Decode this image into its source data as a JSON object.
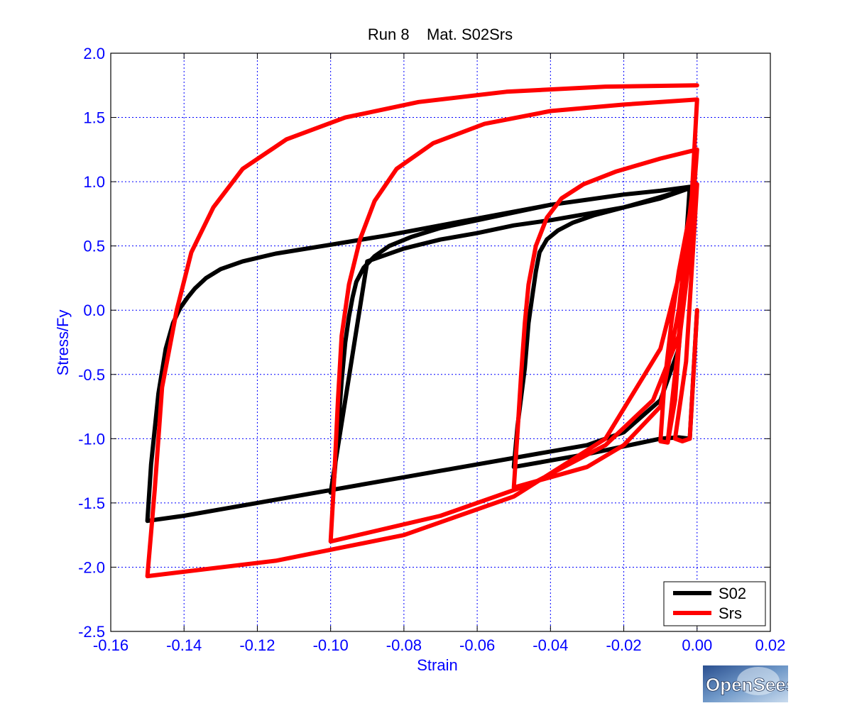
{
  "chart_data": {
    "type": "line",
    "title": "Run 8    Mat. S02Srs",
    "xlabel": "Strain",
    "ylabel": "Stress/Fy",
    "xlim": [
      -0.16,
      0.02
    ],
    "ylim": [
      -2.5,
      2.0
    ],
    "xticks": [
      -0.16,
      -0.14,
      -0.12,
      -0.1,
      -0.08,
      -0.06,
      -0.04,
      -0.02,
      0.0,
      0.02
    ],
    "xtick_labels": [
      "-0.16",
      "-0.14",
      "-0.12",
      "-0.10",
      "-0.08",
      "-0.06",
      "-0.04",
      "-0.02",
      "0.00",
      "0.02"
    ],
    "yticks": [
      2.0,
      1.5,
      1.0,
      0.5,
      0.0,
      -0.5,
      -1.0,
      -1.5,
      -2.0,
      -2.5
    ],
    "ytick_labels": [
      "2.0",
      "1.5",
      "1.0",
      "0.5",
      "0.0",
      "-0.5",
      "-1.0",
      "-1.5",
      "-2.0",
      "-2.5"
    ],
    "grid": true,
    "legend_position": "bottom-right",
    "series": [
      {
        "name": "S02",
        "color": "#000000",
        "x": [
          0,
          -0.002,
          -0.005,
          -0.01,
          -0.02,
          -0.03,
          -0.04,
          -0.05,
          -0.049,
          -0.047,
          -0.046,
          -0.045,
          -0.044,
          -0.043,
          -0.041,
          -0.038,
          -0.034,
          -0.028,
          -0.02,
          -0.01,
          -0.002,
          -0.01,
          -0.02,
          -0.03,
          -0.04,
          -0.05,
          -0.06,
          -0.07,
          -0.08,
          -0.09,
          -0.1,
          -0.099,
          -0.098,
          -0.097,
          -0.096,
          -0.095,
          -0.094,
          -0.093,
          -0.091,
          -0.088,
          -0.084,
          -0.078,
          -0.07,
          -0.06,
          -0.05,
          -0.04,
          -0.03,
          -0.02,
          -0.01,
          -0.002,
          -0.005,
          -0.01,
          -0.02,
          -0.03,
          -0.04,
          -0.05,
          -0.06,
          -0.07,
          -0.08,
          -0.09,
          -0.1,
          -0.11,
          -0.12,
          -0.13,
          -0.14,
          -0.15,
          -0.149,
          -0.147,
          -0.145,
          -0.143,
          -0.141,
          -0.139,
          -0.137,
          -0.134,
          -0.13,
          -0.124,
          -0.115,
          -0.1,
          -0.085,
          -0.07,
          -0.055,
          -0.04,
          -0.03,
          -0.02,
          -0.01,
          -0.002
        ],
        "y": [
          0,
          -1.0,
          -0.99,
          -1.0,
          -1.06,
          -1.12,
          -1.17,
          -1.22,
          -0.9,
          -0.45,
          -0.1,
          0.1,
          0.3,
          0.45,
          0.55,
          0.62,
          0.68,
          0.74,
          0.8,
          0.88,
          0.95,
          0.87,
          0.8,
          0.75,
          0.7,
          0.66,
          0.6,
          0.55,
          0.48,
          0.38,
          -1.42,
          -1.3,
          -0.95,
          -0.55,
          -0.25,
          -0.05,
          0.1,
          0.22,
          0.33,
          0.42,
          0.5,
          0.57,
          0.64,
          0.7,
          0.76,
          0.82,
          0.86,
          0.9,
          0.93,
          0.96,
          -0.3,
          -0.7,
          -0.95,
          -1.05,
          -1.1,
          -1.15,
          -1.2,
          -1.25,
          -1.3,
          -1.35,
          -1.4,
          -1.45,
          -1.5,
          -1.55,
          -1.6,
          -1.64,
          -1.2,
          -0.65,
          -0.3,
          -0.1,
          0.02,
          0.1,
          0.17,
          0.25,
          0.32,
          0.38,
          0.44,
          0.51,
          0.58,
          0.66,
          0.74,
          0.82,
          0.86,
          0.9,
          0.93,
          0.96
        ]
      },
      {
        "name": "Srs",
        "color": "#ff0000",
        "x": [
          0,
          -0.002,
          -0.004,
          -0.006,
          -0.003,
          0,
          -0.003,
          -0.006,
          -0.008,
          -0.006,
          -0.003,
          0,
          -0.004,
          -0.006,
          -0.008,
          -0.01,
          -0.009,
          -0.007,
          -0.005,
          -0.002,
          0,
          -0.005,
          -0.01,
          -0.02,
          -0.03,
          -0.04,
          -0.05,
          -0.049,
          -0.048,
          -0.047,
          -0.046,
          -0.044,
          -0.041,
          -0.037,
          -0.031,
          -0.022,
          -0.01,
          0,
          -0.002,
          -0.005,
          -0.012,
          -0.025,
          -0.045,
          -0.07,
          -0.1,
          -0.099,
          -0.098,
          -0.097,
          -0.095,
          -0.092,
          -0.088,
          -0.082,
          -0.072,
          -0.058,
          -0.04,
          -0.02,
          0,
          -0.002,
          -0.01,
          -0.025,
          -0.05,
          -0.08,
          -0.115,
          -0.15,
          -0.148,
          -0.146,
          -0.142,
          -0.138,
          -0.132,
          -0.124,
          -0.112,
          -0.096,
          -0.076,
          -0.052,
          -0.025,
          0
        ],
        "y": [
          0,
          -1.0,
          -1.02,
          -1.0,
          -0.4,
          0.98,
          0.2,
          -0.5,
          -1.02,
          -0.6,
          0.3,
          1.25,
          0.1,
          -0.7,
          -1.03,
          -1.02,
          -0.6,
          -0.1,
          0.3,
          0.75,
          1.25,
          0.0,
          -0.75,
          -1.05,
          -1.22,
          -1.3,
          -1.38,
          -0.95,
          -0.5,
          -0.1,
          0.2,
          0.5,
          0.72,
          0.87,
          0.98,
          1.08,
          1.18,
          1.25,
          0.5,
          -0.2,
          -0.7,
          -1.05,
          -1.35,
          -1.6,
          -1.8,
          -1.3,
          -0.7,
          -0.2,
          0.2,
          0.55,
          0.85,
          1.1,
          1.3,
          1.45,
          1.55,
          1.6,
          1.64,
          0.6,
          -0.3,
          -1.0,
          -1.45,
          -1.75,
          -1.95,
          -2.07,
          -1.4,
          -0.6,
          0.0,
          0.45,
          0.8,
          1.1,
          1.33,
          1.5,
          1.62,
          1.7,
          1.74,
          1.75
        ]
      }
    ]
  },
  "legend": {
    "items": [
      {
        "label": "S02",
        "color": "#000000"
      },
      {
        "label": "Srs",
        "color": "#ff0000"
      }
    ]
  },
  "logo": {
    "text": "OpenSees"
  }
}
